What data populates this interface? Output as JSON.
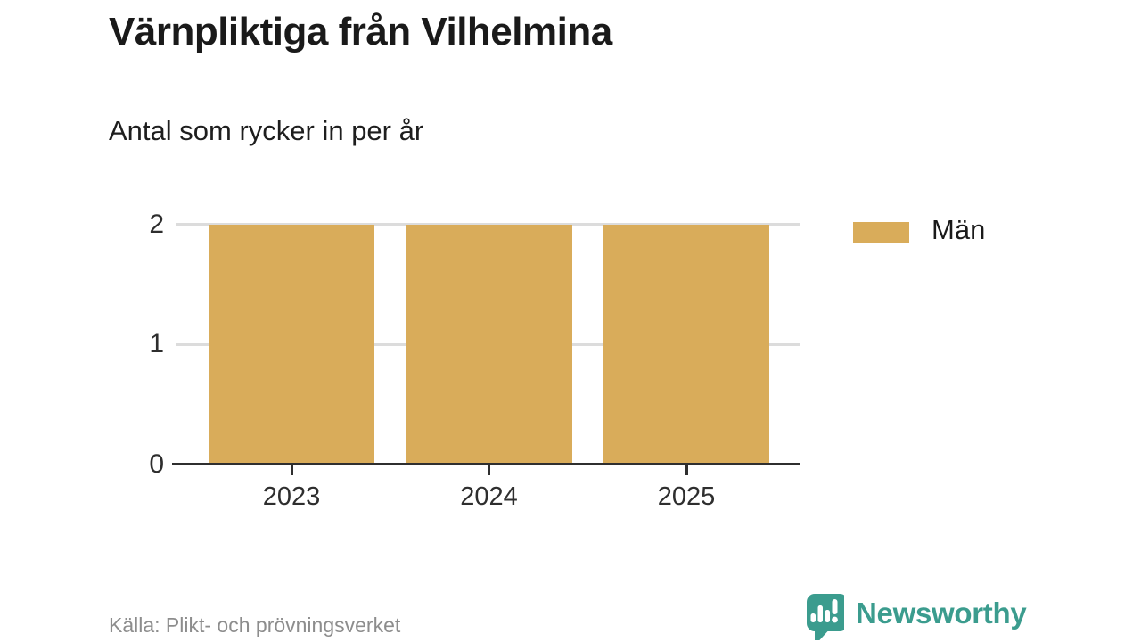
{
  "header": {
    "title": "Värnpliktiga från Vilhelmina",
    "subtitle": "Antal som rycker in per år"
  },
  "chart_data": {
    "type": "bar",
    "categories": [
      "2023",
      "2024",
      "2025"
    ],
    "series": [
      {
        "name": "Män",
        "values": [
          2,
          2,
          2
        ],
        "color": "#d9ac5a"
      }
    ],
    "title": "Värnpliktiga från Vilhelmina",
    "subtitle": "Antal som rycker in per år",
    "xlabel": "",
    "ylabel": "",
    "ylim": [
      0,
      2
    ],
    "yticks": [
      0,
      1,
      2
    ],
    "grid": "horizontal",
    "legend_position": "right"
  },
  "legend": {
    "items": [
      {
        "label": "Män",
        "color": "#d9ac5a"
      }
    ]
  },
  "footer": {
    "source": "Källa: Plikt- och prövningsverket",
    "brand": "Newsworthy"
  },
  "icons": {
    "brand_logo": "newsworthy-speech-bubble-chart-icon"
  },
  "colors": {
    "bar": "#d9ac5a",
    "brand_teal": "#3b9c8e",
    "gridline": "#dcdcdc",
    "axis": "#2f2f2f",
    "title_text": "#1a1a1a",
    "source_text": "#8d8d8d"
  }
}
